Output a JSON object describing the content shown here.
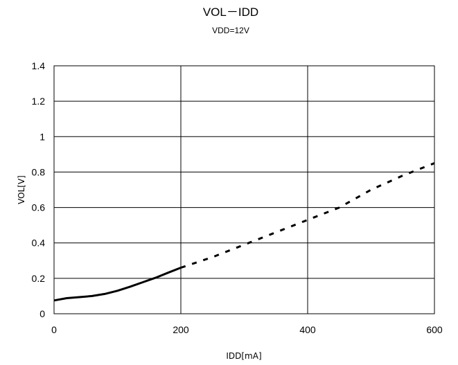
{
  "chart_data": {
    "type": "line",
    "title": "VOL－IDD",
    "subtitle": "VDD=12V",
    "xlabel": "IDD[mA]",
    "ylabel": "VOL[V]",
    "xlim": [
      0,
      600
    ],
    "ylim": [
      0,
      1.4
    ],
    "x_ticks": [
      0,
      200,
      400,
      600
    ],
    "x_tick_labels": [
      "0",
      "200",
      "400",
      "600"
    ],
    "y_ticks": [
      0,
      0.2,
      0.4,
      0.6,
      0.8,
      1.0,
      1.2,
      1.4
    ],
    "y_tick_labels": [
      "0",
      "0.2",
      "0.4",
      "0.6",
      "0.8",
      "1",
      "1.2",
      "1.4"
    ],
    "grid": true,
    "legend": "none",
    "series": [
      {
        "style": "solid",
        "color": "#000000",
        "x": [
          0,
          20,
          40,
          60,
          80,
          100,
          120,
          140,
          160,
          180,
          200
        ],
        "y": [
          0.075,
          0.088,
          0.094,
          0.1,
          0.112,
          0.13,
          0.153,
          0.178,
          0.203,
          0.232,
          0.26
        ]
      },
      {
        "style": "dashed",
        "color": "#000000",
        "x": [
          200,
          250,
          300,
          350,
          400,
          450,
          500,
          550,
          600
        ],
        "y": [
          0.26,
          0.32,
          0.39,
          0.46,
          0.53,
          0.6,
          0.7,
          0.78,
          0.85
        ]
      }
    ]
  }
}
